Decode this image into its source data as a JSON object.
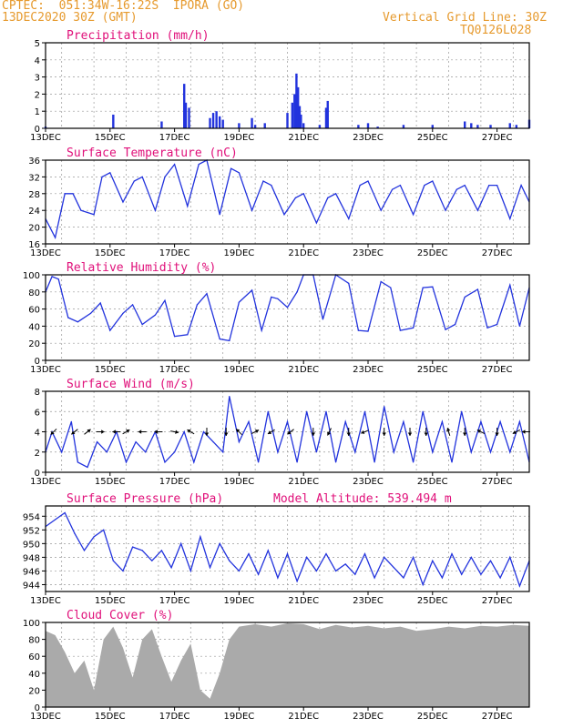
{
  "header": {
    "line1": "CPTEC:  051:34W-16:22S  IPORA (GO)",
    "line2": "13DEC2020 30Z (GMT)",
    "vgrid": "Vertical Grid Line: 30Z",
    "code": "TQ0126L028",
    "model_altitude": "Model Altitude: 539.494 m"
  },
  "colors": {
    "header": "#e69a2e",
    "title": "#e0107a",
    "line": "#2233dd",
    "bar": "#2233dd",
    "cloud": "#aaaaaa",
    "grid": "#999999"
  },
  "chart_data": [
    {
      "type": "bar",
      "title": "Precipitation (mm/h)",
      "x_start": "2020-12-13T00Z",
      "x_end": "2020-12-28T00Z",
      "xticks": [
        "13DEC",
        "15DEC",
        "17DEC",
        "19DEC",
        "21DEC",
        "23DEC",
        "25DEC",
        "27DEC"
      ],
      "yticks": [
        0,
        1,
        2,
        3,
        4,
        5
      ],
      "ylim": [
        0,
        5
      ],
      "x": [
        13.0,
        15.1,
        16.6,
        17.3,
        17.35,
        17.45,
        18.1,
        18.2,
        18.3,
        18.4,
        18.5,
        19.0,
        19.4,
        19.5,
        19.8,
        20.5,
        20.65,
        20.72,
        20.78,
        20.83,
        20.88,
        20.92,
        21.0,
        21.5,
        21.7,
        21.75,
        22.7,
        23.0,
        23.3,
        24.1,
        25.0,
        26.0,
        26.2,
        26.4,
        26.8,
        27.4,
        27.6,
        28.0
      ],
      "values": [
        0.1,
        0.8,
        0.4,
        2.6,
        1.5,
        1.2,
        0.6,
        0.9,
        1.0,
        0.7,
        0.5,
        0.3,
        0.6,
        0.2,
        0.3,
        0.9,
        1.5,
        2.0,
        3.2,
        2.4,
        1.3,
        0.8,
        0.3,
        0.2,
        1.2,
        1.6,
        0.2,
        0.3,
        0.1,
        0.2,
        0.2,
        0.4,
        0.3,
        0.2,
        0.2,
        0.3,
        0.2,
        0.5
      ]
    },
    {
      "type": "line",
      "title": "Surface Temperature (nC)",
      "x_start": "2020-12-13T00Z",
      "x_end": "2020-12-28T00Z",
      "xticks": [
        "13DEC",
        "15DEC",
        "17DEC",
        "19DEC",
        "21DEC",
        "23DEC",
        "25DEC",
        "27DEC"
      ],
      "yticks": [
        16,
        20,
        24,
        28,
        32,
        36
      ],
      "ylim": [
        16,
        36
      ],
      "x": [
        13.0,
        13.3,
        13.6,
        13.85,
        14.1,
        14.5,
        14.75,
        15.0,
        15.4,
        15.75,
        16.0,
        16.4,
        16.7,
        17.0,
        17.4,
        17.75,
        18.0,
        18.4,
        18.75,
        19.0,
        19.4,
        19.75,
        20.0,
        20.4,
        20.75,
        21.0,
        21.4,
        21.75,
        22.0,
        22.4,
        22.75,
        23.0,
        23.4,
        23.75,
        24.0,
        24.4,
        24.75,
        25.0,
        25.4,
        25.75,
        26.0,
        26.4,
        26.75,
        27.0,
        27.4,
        27.75,
        28.0
      ],
      "values": [
        22,
        17.5,
        28,
        28,
        24,
        23,
        32,
        33,
        26,
        31,
        32,
        24,
        32,
        35,
        25,
        35,
        36,
        23,
        34,
        33,
        24,
        31,
        30,
        23,
        27,
        28,
        21,
        27,
        28,
        22,
        30,
        31,
        24,
        29,
        30,
        23,
        30,
        31,
        24,
        29,
        30,
        24,
        30,
        30,
        22,
        30,
        26
      ]
    },
    {
      "type": "line",
      "title": "Relative Humidity (%)",
      "x_start": "2020-12-13T00Z",
      "x_end": "2020-12-28T00Z",
      "xticks": [
        "13DEC",
        "15DEC",
        "17DEC",
        "19DEC",
        "21DEC",
        "23DEC",
        "25DEC",
        "27DEC"
      ],
      "yticks": [
        0,
        20,
        40,
        60,
        80,
        100
      ],
      "ylim": [
        0,
        100
      ],
      "x": [
        13.0,
        13.2,
        13.4,
        13.7,
        14.0,
        14.4,
        14.7,
        15.0,
        15.4,
        15.7,
        16.0,
        16.4,
        16.7,
        17.0,
        17.4,
        17.7,
        18.0,
        18.4,
        18.7,
        19.0,
        19.4,
        19.7,
        20.0,
        20.2,
        20.5,
        20.8,
        21.0,
        21.3,
        21.6,
        22.0,
        22.4,
        22.7,
        23.0,
        23.4,
        23.7,
        24.0,
        24.4,
        24.7,
        25.0,
        25.4,
        25.7,
        26.0,
        26.4,
        26.7,
        27.0,
        27.4,
        27.7,
        28.0
      ],
      "values": [
        80,
        98,
        95,
        50,
        45,
        55,
        67,
        35,
        55,
        65,
        42,
        53,
        70,
        28,
        30,
        65,
        78,
        25,
        23,
        68,
        82,
        35,
        74,
        72,
        62,
        80,
        100,
        100,
        48,
        100,
        90,
        35,
        34,
        92,
        85,
        35,
        38,
        85,
        86,
        36,
        42,
        74,
        83,
        38,
        42,
        88,
        40,
        85
      ]
    },
    {
      "type": "line",
      "title": "Surface Wind (m/s)",
      "x_start": "2020-12-13T00Z",
      "x_end": "2020-12-28T00Z",
      "xticks": [
        "13DEC",
        "15DEC",
        "17DEC",
        "19DEC",
        "21DEC",
        "23DEC",
        "25DEC",
        "27DEC"
      ],
      "yticks": [
        0,
        2,
        4,
        6,
        8
      ],
      "ylim": [
        0,
        8
      ],
      "x": [
        13.0,
        13.2,
        13.5,
        13.8,
        14.0,
        14.3,
        14.6,
        14.9,
        15.2,
        15.5,
        15.8,
        16.1,
        16.4,
        16.7,
        17.0,
        17.3,
        17.6,
        17.9,
        18.2,
        18.5,
        18.7,
        19.0,
        19.3,
        19.6,
        19.9,
        20.2,
        20.5,
        20.8,
        21.1,
        21.4,
        21.7,
        22.0,
        22.3,
        22.6,
        22.9,
        23.2,
        23.5,
        23.8,
        24.1,
        24.4,
        24.7,
        25.0,
        25.3,
        25.6,
        25.9,
        26.2,
        26.5,
        26.8,
        27.1,
        27.4,
        27.7,
        28.0
      ],
      "values": [
        2,
        4,
        2,
        5,
        1,
        0.5,
        3,
        2,
        4,
        1,
        3,
        2,
        4,
        1,
        2,
        4,
        1,
        4,
        3,
        2,
        7.5,
        3,
        5,
        1,
        6,
        2,
        5,
        1,
        6,
        2,
        6,
        1,
        5,
        2,
        6,
        1,
        6.5,
        2,
        5,
        1,
        6,
        2,
        5,
        1,
        6,
        2,
        5,
        2,
        5,
        2,
        5,
        1
      ]
    },
    {
      "type": "line",
      "title": "Surface Pressure (hPa)",
      "x_start": "2020-12-13T00Z",
      "x_end": "2020-12-28T00Z",
      "xticks": [
        "13DEC",
        "15DEC",
        "17DEC",
        "19DEC",
        "21DEC",
        "23DEC",
        "25DEC",
        "27DEC"
      ],
      "yticks": [
        944,
        946,
        948,
        950,
        952,
        954
      ],
      "ylim": [
        943,
        955.5
      ],
      "x": [
        13.0,
        13.3,
        13.6,
        13.9,
        14.2,
        14.5,
        14.8,
        15.1,
        15.4,
        15.7,
        16.0,
        16.3,
        16.6,
        16.9,
        17.2,
        17.5,
        17.8,
        18.1,
        18.4,
        18.7,
        19.0,
        19.3,
        19.6,
        19.9,
        20.2,
        20.5,
        20.8,
        21.1,
        21.4,
        21.7,
        22.0,
        22.3,
        22.6,
        22.9,
        23.2,
        23.5,
        23.8,
        24.1,
        24.4,
        24.7,
        25.0,
        25.3,
        25.6,
        25.9,
        26.2,
        26.5,
        26.8,
        27.1,
        27.4,
        27.7,
        28.0
      ],
      "values": [
        952.5,
        953.5,
        954.5,
        951.5,
        949.0,
        951.0,
        952.0,
        947.5,
        946.0,
        949.5,
        949.0,
        947.5,
        949.0,
        946.5,
        950.0,
        946.0,
        951.0,
        946.5,
        950.0,
        947.5,
        946.0,
        948.5,
        945.5,
        949.0,
        945.0,
        948.5,
        944.5,
        948.0,
        946.0,
        948.5,
        946.0,
        947.0,
        945.5,
        948.5,
        945.0,
        948.0,
        946.5,
        945.0,
        948.0,
        944.0,
        947.5,
        945.0,
        948.5,
        945.5,
        948.0,
        945.5,
        947.5,
        945.0,
        948.0,
        943.8,
        947.5
      ]
    },
    {
      "type": "area",
      "title": "Cloud Cover (%)",
      "x_start": "2020-12-13T00Z",
      "x_end": "2020-12-28T00Z",
      "xticks": [
        "13DEC",
        "15DEC",
        "17DEC",
        "19DEC",
        "21DEC",
        "23DEC",
        "25DEC",
        "27DEC"
      ],
      "yticks": [
        0,
        20,
        40,
        60,
        80,
        100
      ],
      "ylim": [
        0,
        100
      ],
      "x": [
        13.0,
        13.3,
        13.6,
        13.9,
        14.2,
        14.5,
        14.8,
        15.1,
        15.4,
        15.7,
        16.0,
        16.3,
        16.6,
        16.9,
        17.2,
        17.5,
        17.8,
        18.1,
        18.4,
        18.7,
        19.0,
        19.5,
        20.0,
        20.5,
        21.0,
        21.5,
        22.0,
        22.5,
        23.0,
        23.5,
        24.0,
        24.5,
        25.0,
        25.5,
        26.0,
        26.5,
        27.0,
        27.5,
        28.0
      ],
      "values": [
        90,
        85,
        65,
        40,
        55,
        20,
        80,
        95,
        70,
        35,
        80,
        92,
        60,
        30,
        55,
        75,
        20,
        10,
        40,
        80,
        95,
        98,
        95,
        99,
        98,
        92,
        97,
        94,
        96,
        93,
        95,
        90,
        92,
        95,
        93,
        96,
        95,
        97,
        96
      ]
    }
  ],
  "arrows": [
    {
      "x": 13.25,
      "dx": -1,
      "dy": 1
    },
    {
      "x": 13.9,
      "dx": -1,
      "dy": 0.8
    },
    {
      "x": 14.3,
      "dx": 1,
      "dy": -0.8
    },
    {
      "x": 14.7,
      "dx": 1,
      "dy": 0
    },
    {
      "x": 15.2,
      "dx": -1,
      "dy": 0
    },
    {
      "x": 15.5,
      "dx": 1,
      "dy": -0.6
    },
    {
      "x": 16.0,
      "dx": -1,
      "dy": 0
    },
    {
      "x": 16.5,
      "dx": -1,
      "dy": 0
    },
    {
      "x": 17.0,
      "dx": 1,
      "dy": 0.2
    },
    {
      "x": 17.5,
      "dx": -1,
      "dy": -0.6
    },
    {
      "x": 18.0,
      "dx": 0,
      "dy": 1
    },
    {
      "x": 18.6,
      "dx": 0,
      "dy": 1
    },
    {
      "x": 19.0,
      "dx": -1,
      "dy": -1
    },
    {
      "x": 19.5,
      "dx": 1,
      "dy": -0.5
    },
    {
      "x": 20.0,
      "dx": -1,
      "dy": 0.6
    },
    {
      "x": 20.6,
      "dx": -1,
      "dy": 0.8
    },
    {
      "x": 21.3,
      "dx": 0,
      "dy": 1
    },
    {
      "x": 21.8,
      "dx": -0.5,
      "dy": 1
    },
    {
      "x": 22.4,
      "dx": 0,
      "dy": 1
    },
    {
      "x": 22.9,
      "dx": -1,
      "dy": 0.4
    },
    {
      "x": 23.5,
      "dx": 0,
      "dy": 1
    },
    {
      "x": 24.3,
      "dx": 0,
      "dy": 1
    },
    {
      "x": 24.8,
      "dx": 0,
      "dy": 1
    },
    {
      "x": 25.5,
      "dx": -0.3,
      "dy": -1
    },
    {
      "x": 26.0,
      "dx": 0,
      "dy": 1
    },
    {
      "x": 26.5,
      "dx": -1,
      "dy": -0.5
    },
    {
      "x": 27.0,
      "dx": 0,
      "dy": 1
    },
    {
      "x": 27.6,
      "dx": -1,
      "dy": 0.5
    },
    {
      "x": 27.9,
      "dx": -1,
      "dy": 0
    }
  ]
}
